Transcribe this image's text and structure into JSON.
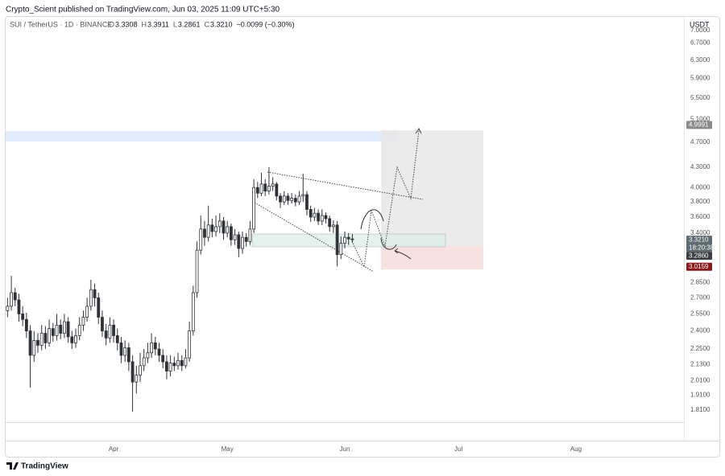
{
  "header": {
    "publisher": "Crypto_Scient published on TradingView.com, Jun 03, 2025 11:09 UTC+5:30",
    "brand": "TradingView"
  },
  "chart_data": {
    "type": "candlestick",
    "symbol": "SUI / TetherUS · 1D · BINANCE",
    "ohlc_legend": [
      {
        "key": "O",
        "text": "3.3308"
      },
      {
        "key": "H",
        "text": "3.3911"
      },
      {
        "key": "L",
        "text": "3.2861"
      },
      {
        "key": "C",
        "text": "3.3210"
      }
    ],
    "change": "−0.0099 (−0.30%)",
    "currency": "USDT",
    "log_scale": true,
    "grid": false,
    "up_color": "#ffffff",
    "down_color": "#2f3338",
    "edge_color": "#2f3338",
    "xlim": [
      -0.5,
      178.5
    ],
    "xticks": [
      {
        "value": 28,
        "label": "Apr"
      },
      {
        "value": 58,
        "label": "May"
      },
      {
        "value": 89,
        "label": "Jun"
      },
      {
        "value": 119,
        "label": "Jul"
      },
      {
        "value": 150,
        "label": "Aug"
      }
    ],
    "ylim": [
      1.734,
      7.16
    ],
    "yticks": [
      {
        "value": 7.0,
        "label": "7.0000"
      },
      {
        "value": 6.7,
        "label": "6.7000"
      },
      {
        "value": 6.3,
        "label": "6.3000"
      },
      {
        "value": 5.9,
        "label": "5.9000"
      },
      {
        "value": 5.5,
        "label": "5.5000"
      },
      {
        "value": 5.1,
        "label": "5.1000"
      },
      {
        "value": 4.7,
        "label": "4.7000"
      },
      {
        "value": 4.3,
        "label": "4.3000"
      },
      {
        "value": 4.0,
        "label": "4.0000"
      },
      {
        "value": 3.8,
        "label": "3.8000"
      },
      {
        "value": 3.6,
        "label": "3.6000"
      },
      {
        "value": 3.4,
        "label": "3.4000"
      },
      {
        "value": 2.85,
        "label": "2.8500"
      },
      {
        "value": 2.7,
        "label": "2.7000"
      },
      {
        "value": 2.55,
        "label": "2.5500"
      },
      {
        "value": 2.4,
        "label": "2.4000"
      },
      {
        "value": 2.25,
        "label": "2.2500"
      },
      {
        "value": 2.13,
        "label": "2.1300"
      },
      {
        "value": 2.01,
        "label": "2.0100"
      },
      {
        "value": 1.91,
        "label": "1.9100"
      },
      {
        "value": 1.81,
        "label": "1.8100"
      }
    ],
    "price_labels": [
      {
        "value": 4.9991,
        "label": "4.9991",
        "color": "#8a8a8a"
      },
      {
        "value": 3.321,
        "label": "3.3210",
        "sub": "18:20:38",
        "color": "#5f6b72"
      },
      {
        "value": 3.286,
        "label": "3.2860",
        "color": "#3b3f44"
      },
      {
        "value": 3.0159,
        "label": "3.0159",
        "color": "#8b1a1a"
      }
    ],
    "open": [
      2.58,
      2.62,
      2.75,
      2.68,
      2.55,
      2.5,
      2.4,
      2.2,
      2.32,
      2.28,
      2.38,
      2.3,
      2.42,
      2.36,
      2.45,
      2.38,
      2.48,
      2.35,
      2.3,
      2.36,
      2.45,
      2.52,
      2.62,
      2.78,
      2.7,
      2.52,
      2.4,
      2.34,
      2.45,
      2.36,
      2.3,
      2.2,
      2.26,
      2.15,
      2.0,
      2.05,
      2.12,
      2.18,
      2.22,
      2.3,
      2.25,
      2.2,
      2.15,
      2.08,
      2.14,
      2.12,
      2.16,
      2.12,
      2.18,
      2.4,
      2.75,
      3.2,
      3.45,
      3.35,
      3.5,
      3.42,
      3.48,
      3.55,
      3.4,
      3.48,
      3.32,
      3.38,
      3.22,
      3.35,
      3.3,
      3.45,
      4.0,
      3.92,
      4.05,
      3.95,
      4.02,
      4.05,
      3.88,
      3.8,
      3.88,
      3.82,
      3.85,
      3.8,
      3.88,
      3.9,
      3.7,
      3.6,
      3.65,
      3.55,
      3.62,
      3.58,
      3.48,
      3.5,
      3.15,
      3.28,
      3.35,
      3.3308
    ],
    "high": [
      2.7,
      2.92,
      2.8,
      2.74,
      2.62,
      2.56,
      2.45,
      2.4,
      2.38,
      2.45,
      2.44,
      2.5,
      2.47,
      2.55,
      2.5,
      2.55,
      2.52,
      2.4,
      2.42,
      2.52,
      2.58,
      2.7,
      2.88,
      2.84,
      2.75,
      2.58,
      2.46,
      2.52,
      2.5,
      2.42,
      2.35,
      2.32,
      2.3,
      2.2,
      2.12,
      2.22,
      2.25,
      2.3,
      2.38,
      2.35,
      2.3,
      2.25,
      2.2,
      2.2,
      2.19,
      2.22,
      2.2,
      2.25,
      2.48,
      2.82,
      3.3,
      3.62,
      3.55,
      3.75,
      3.58,
      3.62,
      3.65,
      3.6,
      3.55,
      3.52,
      3.45,
      3.42,
      3.42,
      3.4,
      3.55,
      4.12,
      4.08,
      4.22,
      4.12,
      4.3,
      4.15,
      4.08,
      3.92,
      3.95,
      3.92,
      3.92,
      3.9,
      3.95,
      4.2,
      3.95,
      3.75,
      3.72,
      3.7,
      3.7,
      3.66,
      3.62,
      3.56,
      3.55,
      3.36,
      3.42,
      3.4,
      3.3911
    ],
    "low": [
      2.52,
      2.58,
      2.62,
      2.48,
      2.44,
      2.34,
      1.96,
      2.15,
      2.22,
      2.24,
      2.25,
      2.27,
      2.31,
      2.32,
      2.33,
      2.34,
      2.3,
      2.25,
      2.26,
      2.32,
      2.4,
      2.48,
      2.58,
      2.62,
      2.46,
      2.35,
      2.28,
      2.3,
      2.3,
      2.24,
      2.14,
      2.15,
      2.08,
      1.8,
      1.92,
      2.0,
      2.08,
      2.14,
      2.18,
      2.2,
      2.15,
      2.1,
      2.02,
      2.04,
      2.08,
      2.09,
      2.08,
      2.1,
      2.15,
      2.36,
      2.7,
      3.15,
      3.25,
      3.3,
      3.35,
      3.36,
      3.4,
      3.32,
      3.35,
      3.25,
      3.26,
      3.12,
      3.16,
      3.24,
      3.26,
      3.4,
      3.85,
      3.88,
      3.88,
      3.9,
      3.95,
      3.82,
      3.72,
      3.76,
      3.76,
      3.78,
      3.74,
      3.76,
      3.8,
      3.62,
      3.54,
      3.55,
      3.5,
      3.5,
      3.52,
      3.42,
      3.4,
      3.02,
      3.1,
      3.22,
      3.26,
      3.2861
    ],
    "close": [
      2.62,
      2.75,
      2.68,
      2.55,
      2.5,
      2.4,
      2.2,
      2.32,
      2.28,
      2.38,
      2.3,
      2.42,
      2.36,
      2.45,
      2.38,
      2.48,
      2.35,
      2.3,
      2.36,
      2.45,
      2.52,
      2.62,
      2.78,
      2.7,
      2.52,
      2.4,
      2.34,
      2.45,
      2.36,
      2.3,
      2.2,
      2.26,
      2.15,
      2.0,
      2.05,
      2.12,
      2.18,
      2.22,
      2.3,
      2.25,
      2.2,
      2.15,
      2.08,
      2.14,
      2.12,
      2.16,
      2.12,
      2.18,
      2.4,
      2.75,
      3.2,
      3.45,
      3.35,
      3.5,
      3.42,
      3.48,
      3.55,
      3.4,
      3.48,
      3.32,
      3.38,
      3.22,
      3.35,
      3.3,
      3.45,
      4.0,
      3.92,
      4.05,
      3.95,
      4.02,
      4.05,
      3.88,
      3.8,
      3.88,
      3.82,
      3.85,
      3.8,
      3.88,
      3.9,
      3.7,
      3.6,
      3.65,
      3.55,
      3.62,
      3.58,
      3.48,
      3.5,
      3.15,
      3.28,
      3.35,
      3.33,
      3.321
    ]
  }
}
